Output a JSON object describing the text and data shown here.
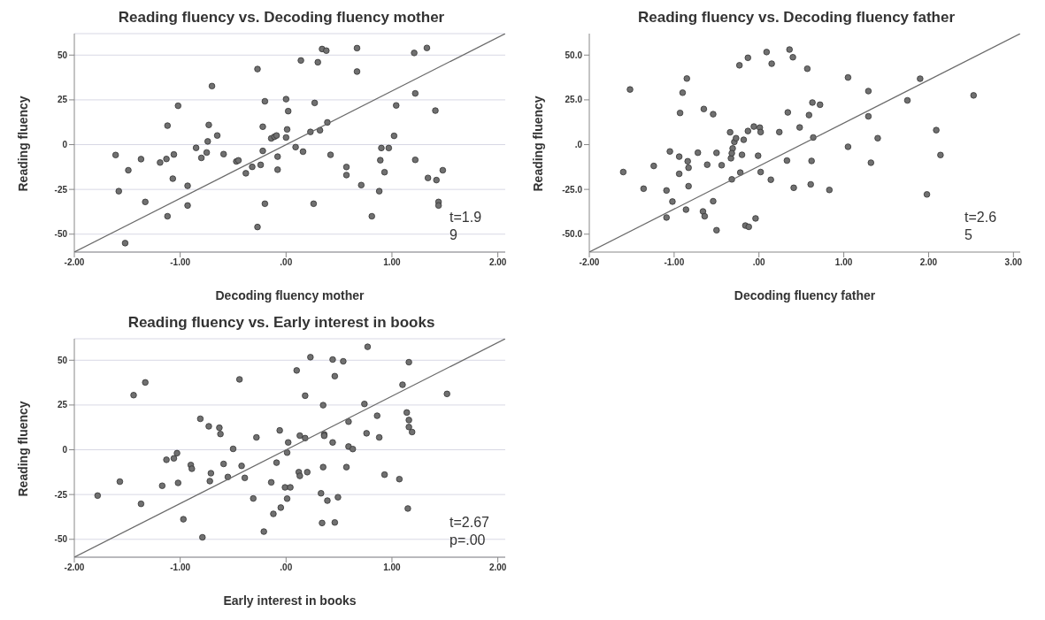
{
  "chart_data": [
    {
      "type": "scatter",
      "title": "Reading fluency vs. Decoding fluency mother",
      "xlabel": "Decoding fluency mother",
      "ylabel": "Reading fluency",
      "xlim": [
        -2,
        2.07
      ],
      "ylim": [
        -60,
        62
      ],
      "xticks": [
        {
          "value": -2,
          "label": "-2.00"
        },
        {
          "value": -1,
          "label": "-1.00"
        },
        {
          "value": 0,
          "label": ".00"
        },
        {
          "value": 1,
          "label": "1.00"
        },
        {
          "value": 2,
          "label": "2.00"
        }
      ],
      "yticks": [
        -50,
        -25,
        0,
        25,
        50
      ],
      "grid": "y",
      "annotations": [
        "t=1.9",
        "9"
      ],
      "series": [
        {
          "type": "scatter",
          "marker": "circle",
          "color": "#707070",
          "x": [
            -1.61,
            -1.58,
            -1.49,
            -1.52,
            -1.37,
            -1.33,
            -1.19,
            -1.13,
            -1.12,
            -1.12,
            -1.06,
            -1.07,
            -1.02,
            -0.93,
            -0.93,
            -0.85,
            -0.8,
            -0.75,
            -0.74,
            -0.73,
            -0.7,
            -0.65,
            -0.59,
            -0.47,
            -0.45,
            -0.38,
            -0.32,
            -0.27,
            -0.27,
            -0.24,
            -0.22,
            -0.22,
            -0.2,
            -0.2,
            -0.14,
            -0.11,
            -0.09,
            -0.08,
            -0.08,
            0,
            0.01,
            0,
            0.02,
            0.09,
            0.14,
            0.16,
            0.23,
            0.27,
            0.26,
            0.3,
            0.32,
            0.34,
            0.38,
            0.39,
            0.42,
            0.57,
            0.57,
            0.67,
            0.67,
            0.71,
            0.81,
            0.88,
            0.89,
            0.9,
            0.93,
            0.97,
            1.02,
            1.04,
            1.21,
            1.22,
            1.22,
            1.33,
            1.34,
            1.41,
            1.42,
            1.44,
            1.44,
            1.48
          ],
          "values": [
            -5.8,
            -26,
            -14.3,
            -55,
            -8.1,
            -32,
            -10,
            -8,
            10.6,
            -40,
            -5.5,
            -19,
            21.7,
            -23,
            -34,
            -1.8,
            -7.4,
            -4.4,
            1.8,
            11,
            32.7,
            5.1,
            -5.3,
            -9.4,
            -8.8,
            -16,
            -12.4,
            42.2,
            -46,
            -11.3,
            -3.5,
            10,
            24.2,
            -33,
            3.5,
            4.4,
            5.1,
            -6.7,
            -14,
            25.4,
            8.5,
            4,
            18.7,
            -1.4,
            47,
            -3.9,
            7.1,
            23.3,
            -33,
            46,
            8,
            53.4,
            52.5,
            12.4,
            -5.7,
            -12.5,
            -17,
            53.9,
            40.8,
            -22.6,
            -40,
            -26,
            -8.7,
            -1.9,
            -15.4,
            -1.9,
            4.9,
            21.9,
            51.2,
            -8.5,
            28.6,
            54,
            -18.6,
            19,
            -19.8,
            -32,
            -34,
            -14.3
          ]
        },
        {
          "type": "line",
          "marker": "none",
          "color": "#6a6a6a",
          "x": [
            -2,
            2.07
          ],
          "values": [
            -60,
            62
          ]
        }
      ]
    },
    {
      "type": "scatter",
      "title": "Reading fluency vs. Decoding fluency father",
      "xlabel": "Decoding fluency father",
      "ylabel": "Reading fluency",
      "xlim": [
        -2,
        3.08
      ],
      "ylim": [
        -60,
        62
      ],
      "xticks": [
        {
          "value": -2,
          "label": "-2.00"
        },
        {
          "value": -1,
          "label": "-1.00"
        },
        {
          "value": 0,
          "label": ".00"
        },
        {
          "value": 1,
          "label": "1.00"
        },
        {
          "value": 2,
          "label": "2.00"
        },
        {
          "value": 3,
          "label": "3.00"
        }
      ],
      "yticks": [
        {
          "value": -50,
          "label": "-50.0"
        },
        {
          "value": -25,
          "label": "-25.0"
        },
        {
          "value": 0,
          "label": ".0"
        },
        {
          "value": 25,
          "label": "25.0"
        },
        {
          "value": 50,
          "label": "50.0"
        }
      ],
      "annotations": [
        "t=2.6",
        "5"
      ],
      "series": [
        {
          "type": "scatter",
          "marker": "circle",
          "color": "#707070",
          "x": [
            -1.6,
            -1.52,
            -1.36,
            -1.24,
            -1.09,
            -1.09,
            -1.05,
            -1.02,
            -0.94,
            -0.93,
            -0.94,
            -0.9,
            -0.85,
            -0.86,
            -0.84,
            -0.83,
            -0.83,
            -0.72,
            -0.66,
            -0.65,
            -0.64,
            -0.61,
            -0.54,
            -0.54,
            -0.5,
            -0.5,
            -0.44,
            -0.34,
            -0.33,
            -0.31,
            -0.32,
            -0.32,
            -0.29,
            -0.27,
            -0.23,
            -0.22,
            -0.2,
            -0.18,
            -0.16,
            -0.13,
            -0.13,
            -0.12,
            -0.06,
            -0.04,
            -0.01,
            0.01,
            0.02,
            0.02,
            0.09,
            0.14,
            0.15,
            0.24,
            0.33,
            0.34,
            0.36,
            0.4,
            0.41,
            0.48,
            0.57,
            0.59,
            0.61,
            0.62,
            0.63,
            0.64,
            0.72,
            0.83,
            1.05,
            1.05,
            1.29,
            1.29,
            1.32,
            1.4,
            1.75,
            1.9,
            1.98,
            2.09,
            2.14,
            2.53
          ],
          "values": [
            -15.3,
            30.8,
            -24.6,
            -11.9,
            -25.6,
            -40.7,
            -3.8,
            -31.8,
            -6.7,
            17.7,
            -16.3,
            29,
            36.9,
            -36.3,
            -9.3,
            -12.9,
            -23.2,
            -4.5,
            -37.3,
            19.9,
            -40,
            -11.2,
            17,
            -31.6,
            -4.6,
            -47.8,
            -11.5,
            6.9,
            -7.6,
            -2.1,
            -4.8,
            -19.4,
            1.5,
            3.6,
            44.3,
            -15.6,
            -5.7,
            2.7,
            -45.2,
            48.5,
            7.6,
            -45.9,
            10.1,
            -41.2,
            -6.2,
            9.5,
            -15.3,
            7,
            51.7,
            -19.6,
            45.2,
            7,
            -8.9,
            18,
            53.1,
            48.8,
            -24.1,
            9.6,
            42.4,
            16.5,
            -22.2,
            -9.1,
            23.5,
            4,
            22.3,
            -25.3,
            37.5,
            -1.2,
            29.9,
            15.8,
            -10.1,
            3.6,
            24.7,
            36.8,
            -27.8,
            8.1,
            -5.8,
            27.5
          ]
        },
        {
          "type": "line",
          "marker": "none",
          "color": "#6a6a6a",
          "x": [
            -2,
            3.08
          ],
          "values": [
            -60,
            62
          ]
        }
      ]
    },
    {
      "type": "scatter",
      "title": "Reading fluency vs. Early interest in books",
      "xlabel": "Early interest in books",
      "ylabel": "Reading fluency",
      "xlim": [
        -2,
        2.07
      ],
      "ylim": [
        -60,
        62
      ],
      "xticks": [
        {
          "value": -2,
          "label": "-2.00"
        },
        {
          "value": -1,
          "label": "-1.00"
        },
        {
          "value": 0,
          "label": ".00"
        },
        {
          "value": 1,
          "label": "1.00"
        },
        {
          "value": 2,
          "label": "2.00"
        }
      ],
      "yticks": [
        -50,
        -25,
        0,
        25,
        50
      ],
      "grid": "y",
      "annotations": [
        "t=2.67",
        "p=.00"
      ],
      "series": [
        {
          "type": "scatter",
          "marker": "circle",
          "color": "#707070",
          "x": [
            -1.78,
            -1.57,
            -1.44,
            -1.37,
            -1.33,
            -1.17,
            -1.13,
            -1.06,
            -1.03,
            -1.02,
            -0.97,
            -0.9,
            -0.89,
            -0.81,
            -0.79,
            -0.73,
            -0.72,
            -0.71,
            -0.63,
            -0.62,
            -0.59,
            -0.55,
            -0.5,
            -0.44,
            -0.42,
            -0.39,
            -0.31,
            -0.28,
            -0.21,
            -0.14,
            -0.12,
            -0.09,
            -0.06,
            -0.05,
            -0.01,
            0.01,
            0.01,
            0.02,
            0.04,
            0.1,
            0.12,
            0.13,
            0.13,
            0.18,
            0.18,
            0.2,
            0.23,
            0.33,
            0.34,
            0.35,
            0.35,
            0.36,
            0.36,
            0.39,
            0.44,
            0.44,
            0.46,
            0.46,
            0.49,
            0.54,
            0.57,
            0.59,
            0.59,
            0.63,
            0.74,
            0.76,
            0.77,
            0.86,
            0.88,
            0.93,
            1.07,
            1.1,
            1.14,
            1.15,
            1.16,
            1.16,
            1.16,
            1.19,
            1.52
          ],
          "values": [
            -25.6,
            -17.8,
            30.5,
            -30.2,
            37.6,
            -20.1,
            -5.6,
            -4.8,
            -1.9,
            -18.5,
            -38.8,
            -8.5,
            -10.6,
            17.3,
            -48.9,
            13.1,
            -17.5,
            -13.1,
            12.3,
            8.8,
            -7.9,
            -15.2,
            0.5,
            39.3,
            -9,
            -15.7,
            -27.2,
            6.9,
            -45.7,
            -18.2,
            -35.8,
            -7.2,
            10.8,
            -32.3,
            -21,
            -1.6,
            -27.3,
            4.1,
            -21,
            44.3,
            -12.5,
            -14.6,
            7.9,
            30.2,
            6.5,
            -12.5,
            51.7,
            -24.3,
            -40.9,
            24.9,
            -9.7,
            8.6,
            7.8,
            -28.4,
            50.4,
            4.1,
            41.1,
            -40.6,
            -26.5,
            49.4,
            -9.7,
            15.7,
            1.8,
            0.4,
            25.6,
            9.2,
            57.5,
            19,
            6.9,
            -13.9,
            -16.4,
            36.3,
            20.8,
            -32.8,
            48.9,
            16.6,
            12.7,
            9.9,
            31.2
          ]
        },
        {
          "type": "line",
          "marker": "none",
          "color": "#6a6a6a",
          "x": [
            -2,
            2.07
          ],
          "values": [
            -60,
            62
          ]
        }
      ]
    }
  ]
}
